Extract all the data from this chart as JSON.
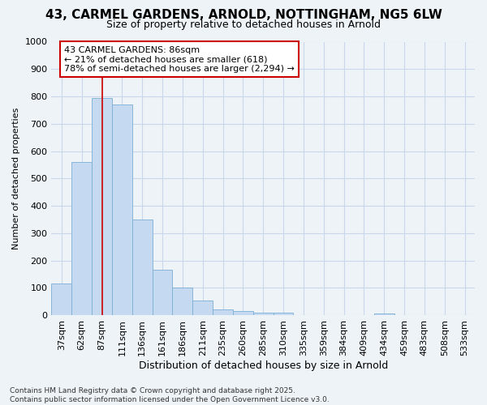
{
  "title": "43, CARMEL GARDENS, ARNOLD, NOTTINGHAM, NG5 6LW",
  "subtitle": "Size of property relative to detached houses in Arnold",
  "xlabel": "Distribution of detached houses by size in Arnold",
  "ylabel": "Number of detached properties",
  "categories": [
    "37sqm",
    "62sqm",
    "87sqm",
    "111sqm",
    "136sqm",
    "161sqm",
    "186sqm",
    "211sqm",
    "235sqm",
    "260sqm",
    "285sqm",
    "310sqm",
    "335sqm",
    "359sqm",
    "384sqm",
    "409sqm",
    "434sqm",
    "459sqm",
    "483sqm",
    "508sqm",
    "533sqm"
  ],
  "values": [
    115,
    560,
    795,
    770,
    350,
    165,
    100,
    55,
    20,
    15,
    10,
    10,
    0,
    0,
    0,
    0,
    5,
    0,
    0,
    0,
    0
  ],
  "bar_color": "#c5d9f0",
  "bar_edge_color": "#7bafd4",
  "grid_color": "#c8d8ea",
  "background_color": "#f0f4f8",
  "plot_bg_color": "#eef3f8",
  "vline_x": 2.0,
  "vline_color": "#cc0000",
  "annotation_text": "43 CARMEL GARDENS: 86sqm\n← 21% of detached houses are smaller (618)\n78% of semi-detached houses are larger (2,294) →",
  "annotation_box_facecolor": "#ffffff",
  "annotation_box_edgecolor": "#cc0000",
  "footer": "Contains HM Land Registry data © Crown copyright and database right 2025.\nContains public sector information licensed under the Open Government Licence v3.0.",
  "ylim": [
    0,
    1000
  ],
  "yticks": [
    0,
    100,
    200,
    300,
    400,
    500,
    600,
    700,
    800,
    900,
    1000
  ],
  "title_fontsize": 11,
  "subtitle_fontsize": 9,
  "xlabel_fontsize": 9,
  "ylabel_fontsize": 8,
  "tick_fontsize": 8,
  "annot_fontsize": 8,
  "footer_fontsize": 6.5
}
